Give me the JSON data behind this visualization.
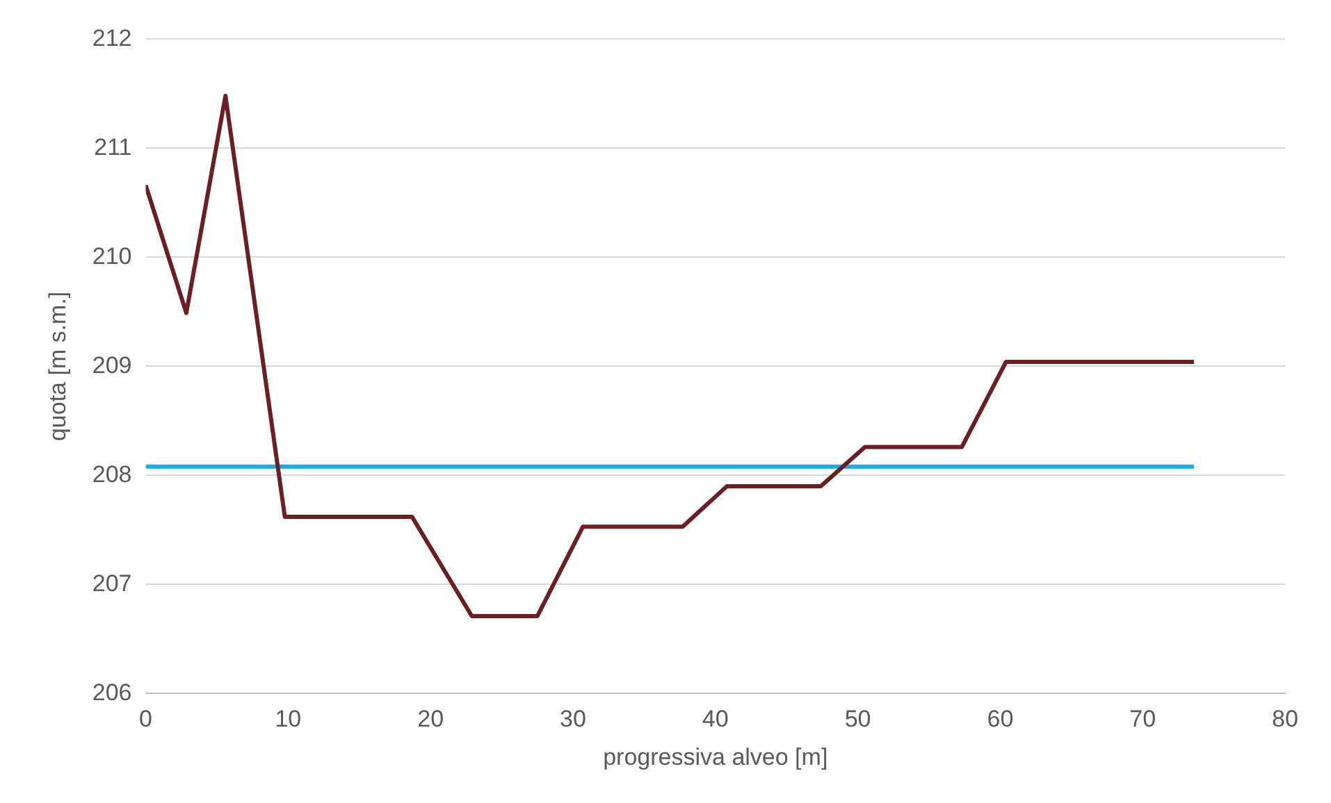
{
  "chart_data": {
    "type": "line",
    "xlabel": "progressiva alveo [m]",
    "ylabel": "quota [m s.m.]",
    "xlim": [
      0,
      80
    ],
    "xticks": [
      0,
      10,
      20,
      30,
      40,
      50,
      60,
      70,
      80
    ],
    "ylim": [
      206,
      212
    ],
    "yticks": [
      206,
      207,
      208,
      209,
      210,
      211,
      212
    ],
    "grid": "y",
    "legend": false,
    "marker": "none",
    "line_style": "solid",
    "series": [
      {
        "color": "#6b1f22",
        "x": [
          0,
          2.85,
          5.6,
          9.77,
          18.7,
          22.9,
          27.5,
          30.7,
          37.7,
          40.8,
          47.4,
          50.5,
          57.3,
          60.4,
          73.6
        ],
        "values": [
          210.66,
          209.49,
          211.48,
          207.62,
          207.62,
          206.71,
          206.71,
          207.53,
          207.53,
          207.9,
          207.9,
          208.26,
          208.26,
          209.04,
          209.04
        ]
      },
      {
        "color": "#1aabe3",
        "x": [
          0,
          73.6
        ],
        "values": [
          208.08,
          208.08
        ]
      }
    ]
  }
}
